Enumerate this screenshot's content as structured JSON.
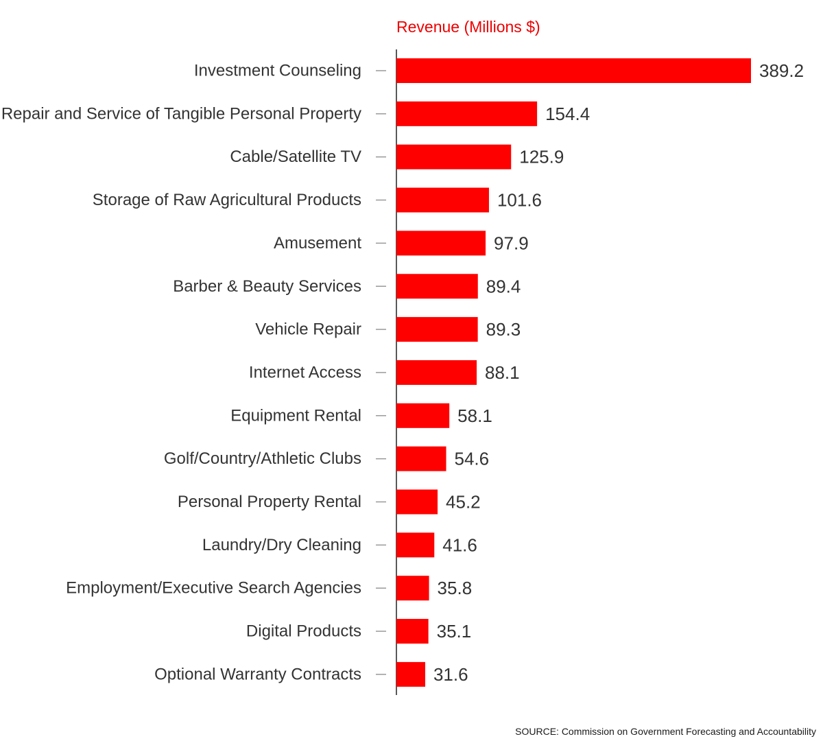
{
  "chart_data": {
    "type": "bar",
    "orientation": "horizontal",
    "title": "Revenue (Millions $)",
    "xlabel": "",
    "ylabel": "",
    "categories": [
      "Investment Counseling",
      "Repair and Service of Tangible Personal Property",
      "Cable/Satellite TV",
      "Storage of Raw Agricultural Products",
      "Amusement",
      "Barber & Beauty Services",
      "Vehicle Repair",
      "Internet Access",
      "Equipment Rental",
      "Golf/Country/Athletic Clubs",
      "Personal Property Rental",
      "Laundry/Dry Cleaning",
      "Employment/Executive Search Agencies",
      "Digital Products",
      "Optional Warranty Contracts"
    ],
    "values": [
      389.2,
      154.4,
      125.9,
      101.6,
      97.9,
      89.4,
      89.3,
      88.1,
      58.1,
      54.6,
      45.2,
      41.6,
      35.8,
      35.1,
      31.6
    ],
    "data_labels": [
      "389.2",
      "154.4",
      "125.9",
      "101.6",
      "97.9",
      "89.4",
      "89.3",
      "88.1",
      "58.1",
      "54.6",
      "45.2",
      "41.6",
      "35.8",
      "35.1",
      "31.6"
    ],
    "xlim": [
      0,
      389.2
    ],
    "grid": false,
    "legend": "none",
    "colors": {
      "bar": "#ff0000",
      "title": "#ee0000",
      "text": "#333333",
      "axis": "#222222",
      "tick": "#999999"
    }
  },
  "source_note": "SOURCE: Commission on Government Forecasting and Accountability"
}
